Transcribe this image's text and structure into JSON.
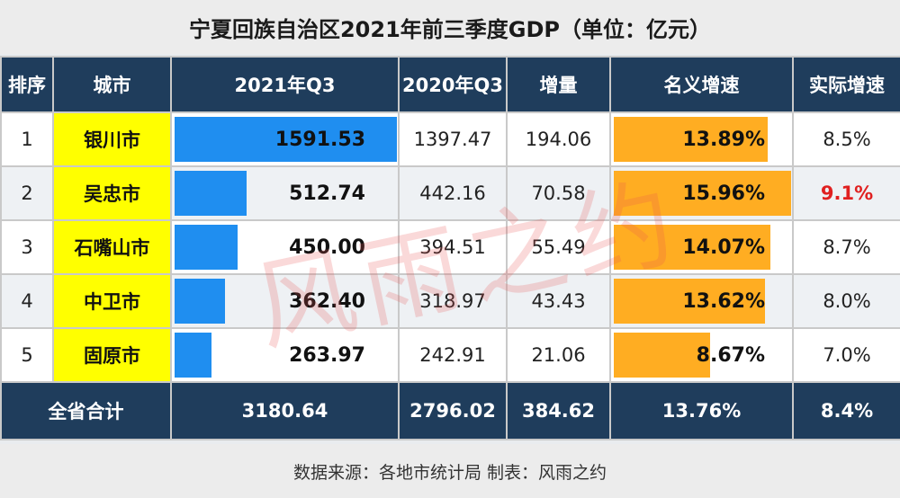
{
  "chart_data": {
    "type": "table",
    "title": "宁夏回族自治区2021年前三季度GDP（单位：亿元）",
    "columns": [
      "排序",
      "城市",
      "2021年Q3",
      "2020年Q3",
      "增量",
      "名义增速",
      "实际增速"
    ],
    "rows": [
      {
        "rank": "1",
        "city": "银川市",
        "q3_2021": "1591.53",
        "q3_2020": "1397.47",
        "increase": "194.06",
        "nominal_growth": "13.89%",
        "real_growth": "8.5%",
        "q3_2021_value": 1591.53,
        "nominal_value": 13.89,
        "real_highlight": false
      },
      {
        "rank": "2",
        "city": "吴忠市",
        "q3_2021": "512.74",
        "q3_2020": "442.16",
        "increase": "70.58",
        "nominal_growth": "15.96%",
        "real_growth": "9.1%",
        "q3_2021_value": 512.74,
        "nominal_value": 15.96,
        "real_highlight": true
      },
      {
        "rank": "3",
        "city": "石嘴山市",
        "q3_2021": "450.00",
        "q3_2020": "394.51",
        "increase": "55.49",
        "nominal_growth": "14.07%",
        "real_growth": "8.7%",
        "q3_2021_value": 450.0,
        "nominal_value": 14.07,
        "real_highlight": false
      },
      {
        "rank": "4",
        "city": "中卫市",
        "q3_2021": "362.40",
        "q3_2020": "318.97",
        "increase": "43.43",
        "nominal_growth": "13.62%",
        "real_growth": "8.0%",
        "q3_2021_value": 362.4,
        "nominal_value": 13.62,
        "real_highlight": false
      },
      {
        "rank": "5",
        "city": "固原市",
        "q3_2021": "263.97",
        "q3_2020": "242.91",
        "increase": "21.06",
        "nominal_growth": "8.67%",
        "real_growth": "7.0%",
        "q3_2021_value": 263.97,
        "nominal_value": 8.67,
        "real_highlight": false
      }
    ],
    "total": {
      "label": "全省合计",
      "q3_2021": "3180.64",
      "q3_2020": "2796.02",
      "increase": "384.62",
      "nominal_growth": "13.76%",
      "real_growth": "8.4%"
    },
    "bar_max": 1591.53,
    "pct_bar_max": 15.96
  },
  "source": "数据来源：各地市统计局   制表：风雨之约",
  "watermark": "风雨之约",
  "colors": {
    "header_bg": "#1f3d5c",
    "city_bg": "#ffff00",
    "gdp_bar": "#1f8ef0",
    "growth_bar": "#ffad22",
    "highlight_text": "#e02020"
  }
}
